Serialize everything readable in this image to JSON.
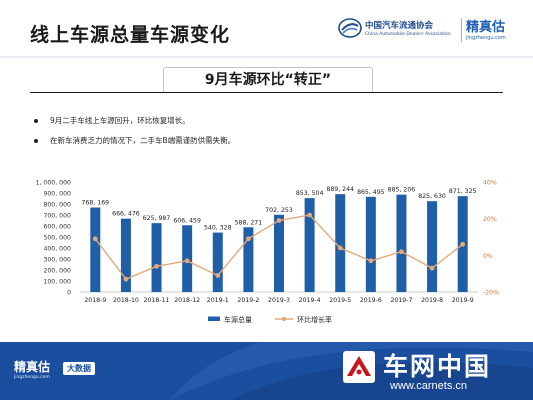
{
  "header": {
    "title": "线上车源总量车源变化",
    "association_name": "中国汽车流通协会",
    "association_name_en": "China Automobile Dealers Association",
    "brand": "精真估",
    "brand_url": "jingzhengu.com"
  },
  "subtitle": "9月车源环比“转正”",
  "bullets": [
    "9月二手车线上车源回升，环比恢复增长。",
    "在新车消费乏力的情况下，二手车B端需谨防供需失衡。"
  ],
  "colors": {
    "bar": "#1f5fa8",
    "line": "#e6a878",
    "header_blue": "#1f4e8c",
    "footer_blue": "#1a4fa0"
  },
  "chart_data": {
    "type": "bar",
    "categories": [
      "2018-9",
      "2018-10",
      "2018-11",
      "2018-12",
      "2019-1",
      "2019-2",
      "2019-3",
      "2019-4",
      "2019-5",
      "2019-6",
      "2019-7",
      "2019-8",
      "2019-9"
    ],
    "series": [
      {
        "name": "车源总量",
        "type": "bar",
        "axis": "left",
        "values": [
          768169,
          666476,
          625987,
          606459,
          540328,
          588271,
          702253,
          853504,
          889244,
          865495,
          885206,
          825630,
          871325
        ],
        "labels": [
          "768, 169",
          "666, 476",
          "625, 987",
          "606, 459",
          "540, 328",
          "588, 271",
          "702, 253",
          "853, 504",
          "889, 244",
          "865, 495",
          "885, 206",
          "825, 630",
          "871, 325"
        ]
      },
      {
        "name": "环比增长率",
        "type": "line",
        "axis": "right",
        "values": [
          9,
          -13,
          -6,
          -3,
          -11,
          9,
          19,
          22,
          4,
          -3,
          2,
          -7,
          6
        ]
      }
    ],
    "y_left": {
      "ylim": [
        0,
        1000000
      ],
      "ticks": [
        0,
        100000,
        200000,
        300000,
        400000,
        500000,
        600000,
        700000,
        800000,
        900000,
        1000000
      ],
      "tick_labels": [
        "0",
        "100, 000",
        "200, 000",
        "300, 000",
        "400, 000",
        "500, 000",
        "600, 000",
        "700, 000",
        "800, 000",
        "900, 000",
        "1, 000, 000"
      ]
    },
    "y_right": {
      "ylim": [
        -20,
        40
      ],
      "ticks": [
        -20,
        0,
        20,
        40
      ],
      "tick_labels": [
        "-20%",
        "0%",
        "20%",
        "40%"
      ]
    },
    "grid": false,
    "legend": "bottom"
  },
  "footer": {
    "brand": "精真估",
    "brand_url": "jingzhengu.com",
    "badge": "大数据",
    "site_name": "车网中国",
    "site_url": "www.carnets.cn"
  }
}
